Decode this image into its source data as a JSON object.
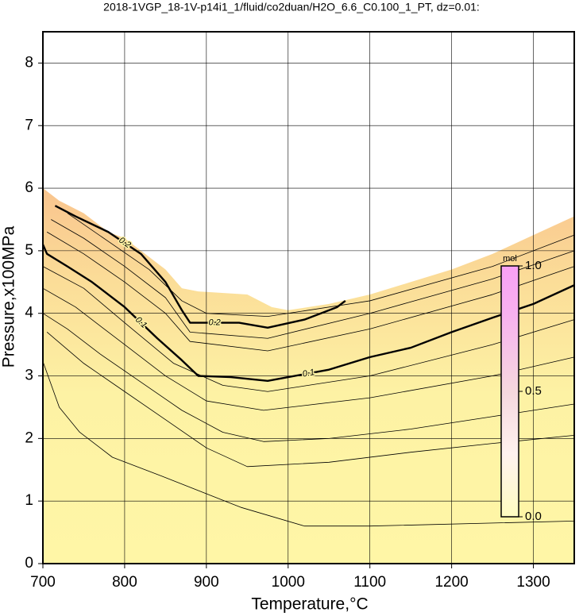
{
  "chart_data": {
    "type": "contour",
    "title": "2018-1VGP_18-1V-p14i1_1/fluid/co2duan/H2O_6.6_C0.100_1_PT, dz=0.01:",
    "x_label": "Temperature,°C",
    "y_label": "Pressure,x100MPa",
    "xlim": [
      700,
      1350
    ],
    "ylim": [
      0,
      8.5
    ],
    "xticks": [
      700,
      800,
      900,
      1000,
      1100,
      1200,
      1300
    ],
    "yticks": [
      0,
      1,
      2,
      3,
      4,
      5,
      6,
      7,
      8
    ],
    "grid": true,
    "region": {
      "x": [
        700,
        720,
        750,
        780,
        800,
        820,
        850,
        870,
        890,
        950,
        980,
        1000,
        1050,
        1100,
        1150,
        1200,
        1250,
        1300,
        1350
      ],
      "y": [
        6.0,
        5.8,
        5.6,
        5.3,
        5.2,
        5.0,
        4.7,
        4.4,
        4.35,
        4.3,
        4.1,
        4.05,
        4.15,
        4.3,
        4.5,
        4.7,
        4.95,
        5.25,
        5.55
      ]
    },
    "contours": [
      {
        "level": 0.2,
        "bold": true,
        "x": [
          715,
          740,
          780,
          820,
          850,
          870,
          880,
          940,
          975,
          1020,
          1060,
          1070
        ],
        "y": [
          5.72,
          5.55,
          5.3,
          4.95,
          4.5,
          4.05,
          3.85,
          3.85,
          3.77,
          3.9,
          4.1,
          4.2
        ]
      },
      {
        "level": 0.1,
        "bold": true,
        "x": [
          700,
          705,
          730,
          760,
          800,
          840,
          870,
          890,
          930,
          975,
          1000,
          1050,
          1100,
          1150,
          1200,
          1250,
          1300,
          1350
        ],
        "y": [
          5.1,
          4.95,
          4.75,
          4.5,
          4.1,
          3.6,
          3.25,
          3.0,
          2.98,
          2.92,
          2.98,
          3.1,
          3.3,
          3.45,
          3.7,
          3.93,
          4.15,
          4.45
        ]
      },
      {
        "bold": false,
        "x": [
          700,
          720,
          745,
          785,
          845,
          942,
          1020,
          1100,
          1350
        ],
        "y": [
          3.23,
          2.5,
          2.1,
          1.7,
          1.4,
          0.9,
          0.6,
          0.6,
          0.68
        ]
      },
      {
        "bold": false,
        "x": [
          705,
          750,
          800,
          850,
          900,
          950,
          1050,
          1150,
          1250,
          1350
        ],
        "y": [
          3.7,
          3.2,
          2.75,
          2.3,
          1.85,
          1.55,
          1.62,
          1.78,
          1.92,
          2.05
        ]
      },
      {
        "bold": false,
        "x": [
          700,
          730,
          770,
          820,
          870,
          920,
          970,
          1050,
          1150,
          1250,
          1350
        ],
        "y": [
          4.0,
          3.75,
          3.35,
          2.9,
          2.45,
          2.1,
          1.95,
          2.0,
          2.15,
          2.35,
          2.55
        ]
      },
      {
        "bold": false,
        "x": [
          700,
          740,
          800,
          850,
          900,
          970,
          1100,
          1250,
          1350
        ],
        "y": [
          4.4,
          4.1,
          3.5,
          3.0,
          2.6,
          2.45,
          2.65,
          3.0,
          3.3
        ]
      },
      {
        "bold": false,
        "x": [
          700,
          750,
          800,
          860,
          920,
          975,
          1100,
          1250,
          1350
        ],
        "y": [
          4.75,
          4.4,
          3.85,
          3.2,
          2.85,
          2.75,
          3.0,
          3.5,
          3.9
        ]
      },
      {
        "bold": false,
        "x": [
          705,
          750,
          800,
          850,
          880,
          975,
          1100,
          1250,
          1350
        ],
        "y": [
          5.3,
          4.95,
          4.5,
          4.0,
          3.55,
          3.4,
          3.75,
          4.3,
          4.75
        ]
      },
      {
        "bold": false,
        "x": [
          710,
          750,
          800,
          850,
          880,
          975,
          1100,
          1250,
          1350
        ],
        "y": [
          5.5,
          5.2,
          4.75,
          4.25,
          3.7,
          3.6,
          4.0,
          4.55,
          5.0
        ]
      },
      {
        "bold": false,
        "x": [
          730,
          780,
          830,
          870,
          900,
          975,
          1100,
          1250,
          1350
        ],
        "y": [
          5.6,
          5.15,
          4.7,
          4.2,
          4.0,
          3.95,
          4.2,
          4.75,
          5.25
        ]
      }
    ],
    "colorbar": {
      "label": "mol",
      "lim": [
        0,
        1
      ],
      "ticks": [
        {
          "value": 0,
          "label": "0.0"
        },
        {
          "value": 0.5,
          "label": "0.5"
        },
        {
          "value": 1,
          "label": "1.0"
        }
      ]
    }
  }
}
